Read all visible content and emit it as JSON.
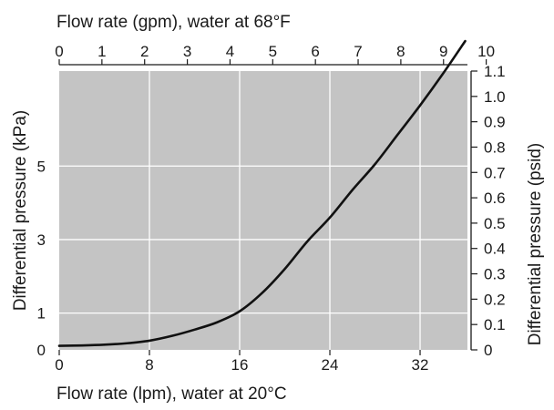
{
  "chart_data": {
    "type": "line",
    "x": [
      0,
      2,
      4,
      6,
      8,
      10,
      12,
      14,
      16,
      18,
      20,
      22,
      24,
      26,
      28,
      30,
      32,
      34,
      36
    ],
    "series": [
      {
        "values": [
          0.11,
          0.12,
          0.14,
          0.18,
          0.25,
          0.38,
          0.55,
          0.75,
          1.05,
          1.55,
          2.2,
          2.95,
          3.6,
          4.35,
          5.05,
          5.85,
          6.65,
          7.5,
          8.4
        ]
      }
    ],
    "color": "#111111",
    "plot_background": "#c4c4c4",
    "grid": true,
    "axes": {
      "bottom": {
        "label": "Flow rate (lpm), water at 20°C",
        "range": [
          0,
          36.2
        ],
        "ticks": [
          0,
          8,
          16,
          24,
          32
        ]
      },
      "left": {
        "label": "Differential pressure (kPa)",
        "ticks": [
          0,
          1,
          3,
          5
        ]
      },
      "top": {
        "label": "Flow rate (gpm), water at 68°F",
        "range": [
          0,
          9.56
        ],
        "ticks": [
          0,
          1,
          2,
          3,
          4,
          5,
          6,
          7,
          8,
          9,
          10
        ]
      },
      "right": {
        "label": "Differential pressure (psid)",
        "range": [
          0,
          1.1
        ],
        "ticks": [
          "0",
          "0.1",
          "0.2",
          "0.3",
          "0.4",
          "0.5",
          "0.6",
          "0.7",
          "0.8",
          "0.9",
          "1.0",
          "1.1"
        ]
      }
    }
  }
}
